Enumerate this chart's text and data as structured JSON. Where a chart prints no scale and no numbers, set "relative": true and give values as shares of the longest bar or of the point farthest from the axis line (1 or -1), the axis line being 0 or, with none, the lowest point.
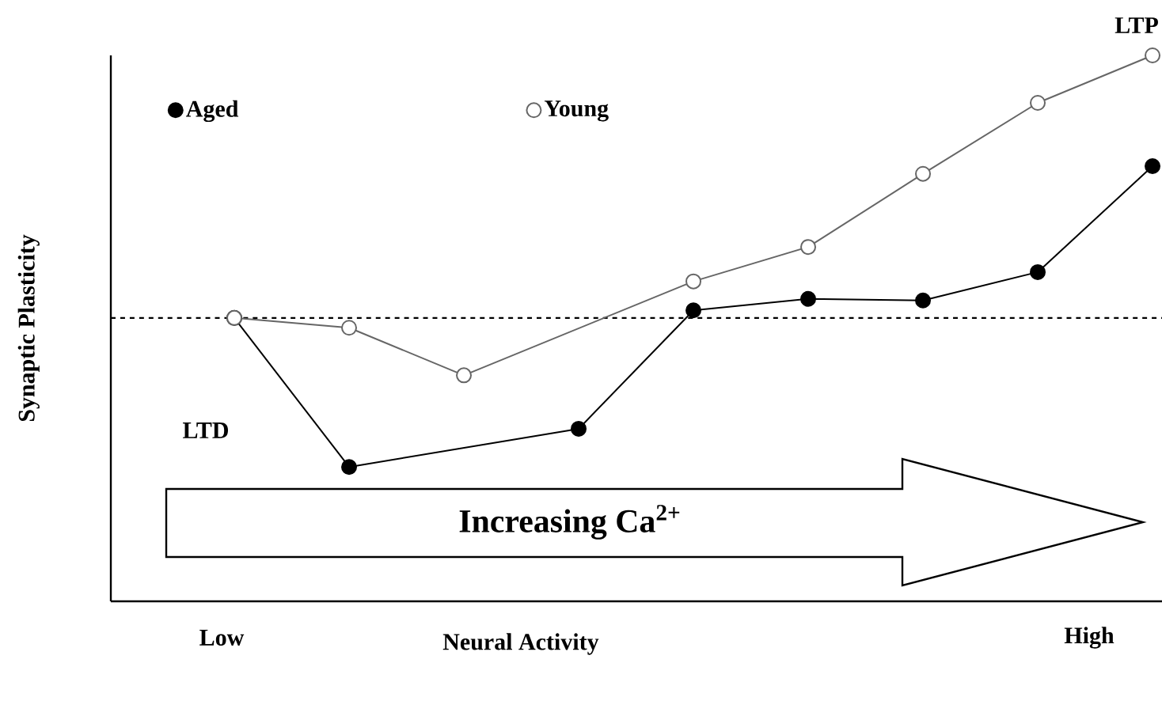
{
  "chart_data": {
    "type": "line",
    "xlabel": "Neural Activity",
    "ylabel": "Synaptic Plasticity",
    "relative": true,
    "categories": [
      null,
      null,
      null,
      null,
      null,
      null,
      null,
      null,
      null
    ],
    "marker": "circle",
    "line_style": "solid",
    "legend": "top left",
    "series": [
      {
        "name": "Aged",
        "color": "#000000",
        "values": [
          0.519,
          0.246,
          null,
          0.316,
          0.533,
          0.554,
          0.551,
          0.603,
          0.797
        ]
      },
      {
        "name": "Young",
        "color": "#666666",
        "values": [
          0.519,
          0.501,
          0.414,
          null,
          0.586,
          0.649,
          0.783,
          0.913,
          1.0
        ]
      }
    ],
    "ref_lines": [
      {
        "axis": "y",
        "value": 0.519,
        "line_style": "dashed",
        "color": "#000000"
      }
    ],
    "annotations": [
      "LTP",
      "LTD",
      "Increasing Ca$^{2+}$",
      "Low",
      "High"
    ]
  }
}
